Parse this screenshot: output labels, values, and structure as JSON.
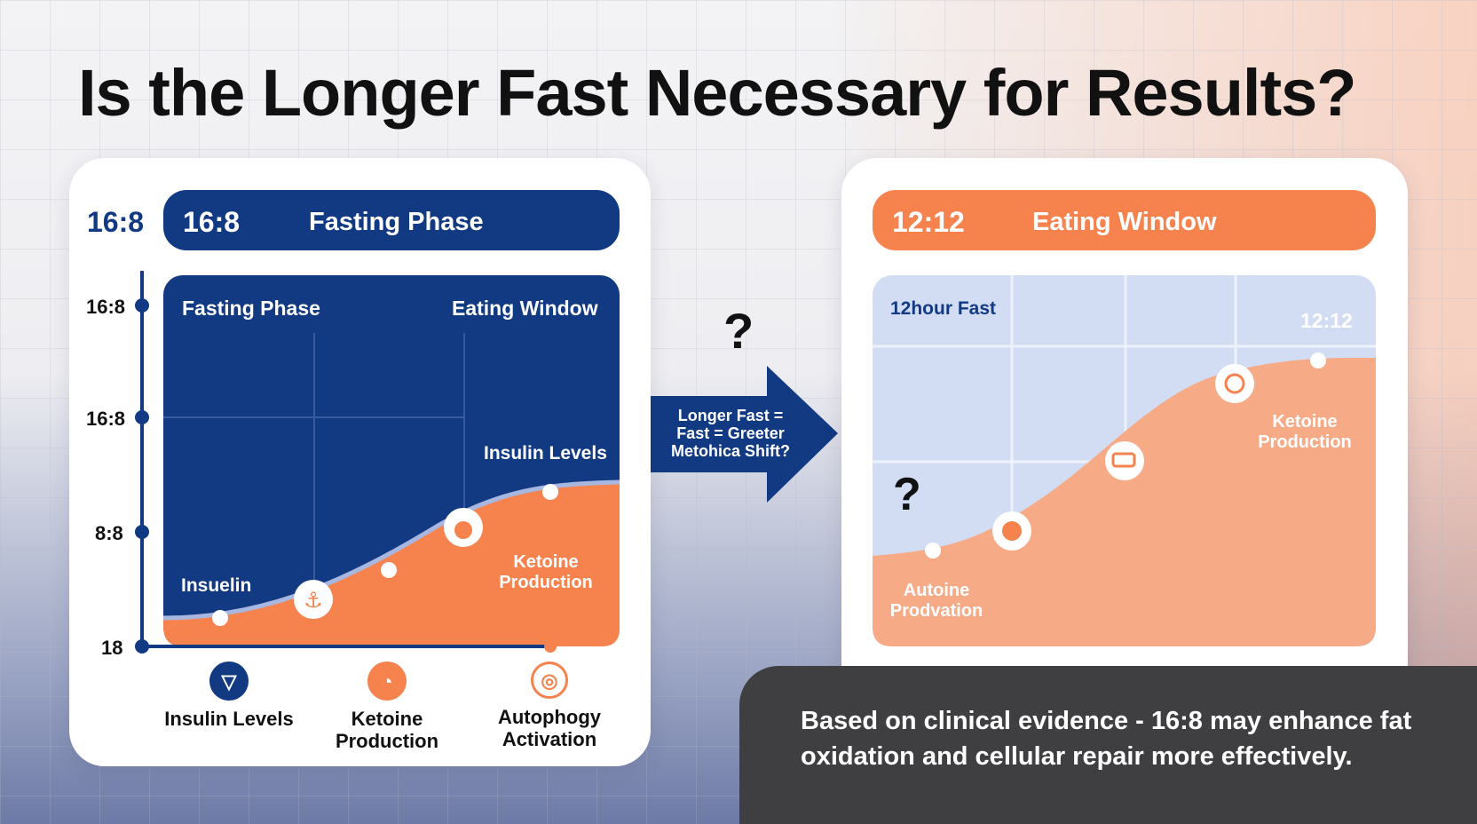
{
  "title": "Is the Longer Fast Necessary for Results?",
  "left_panel": {
    "outside_ratio": "16:8",
    "header_ratio": "16:8",
    "header_label": "Fasting Phase",
    "y_labels": [
      "16:8",
      "16:8",
      "8:8",
      "18"
    ],
    "chart_labels": {
      "fasting_phase": "Fasting Phase",
      "eating_window": "Eating Window",
      "insulin_levels": "Insulin Levels",
      "insulin": "Insuelin",
      "ketone_line1": "Ketoine",
      "ketone_line2": "Production"
    },
    "legend": [
      {
        "line1": "Insulin Levels",
        "line2": "",
        "icon": "triangle-down-icon",
        "color": "#113a82"
      },
      {
        "line1": "Ketoine",
        "line2": "Production",
        "icon": "flame-icon",
        "color": "#f6824e"
      },
      {
        "line1": "Autophogy",
        "line2": "Activation",
        "icon": "cell-icon",
        "color": "#f6824e"
      }
    ]
  },
  "center": {
    "question": "?",
    "arrow_line1": "Longer Fast =",
    "arrow_line2": "Fast = Greeter",
    "arrow_line3": "Metohica Shift?"
  },
  "right_panel": {
    "header_ratio": "12:12",
    "header_label": "Eating Window",
    "chart_labels": {
      "fast": "12hour Fast",
      "ratio": "12:12",
      "ketone_line1": "Ketoine",
      "ketone_line2": "Production",
      "autoine_line1": "Autoine",
      "autoine_line2": "Prodvation"
    },
    "question": "?"
  },
  "footer_text": "Based on clinical evidence - 16:8 may enhance fat oxidation and cellular repair more effectively.",
  "colors": {
    "navy": "#113a82",
    "orange": "#f6824e",
    "light_blue": "#d2ddf4",
    "dark_box": "#3f3f41"
  }
}
